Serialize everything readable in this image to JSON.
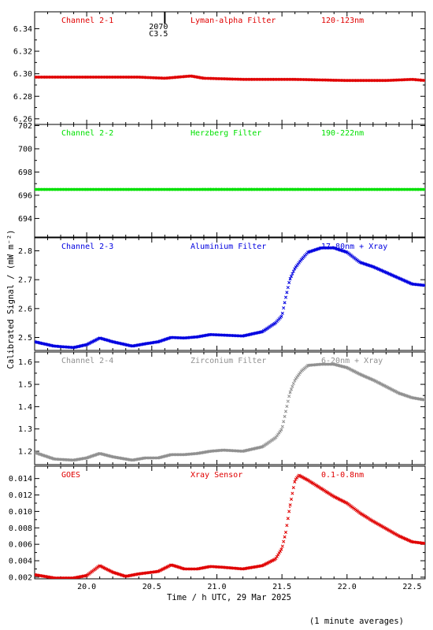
{
  "figure": {
    "xlabel": "Time / h UTC, 29 Mar 2025",
    "ylabel": "Calibrated Signal / (mW m⁻²)",
    "footer": "(1 minute averages)",
    "marker": {
      "label1": "2070",
      "label2": "C3.5",
      "x": 20.6
    }
  },
  "chart_data": [
    {
      "type": "scatter",
      "panel": 1,
      "channel": "Channel 2-1",
      "filter": "Lyman-alpha Filter",
      "band": "120-123nm",
      "color": "#e00000",
      "xlim": [
        19.6,
        22.6
      ],
      "ylim": [
        6.255,
        6.355
      ],
      "yticks": [
        6.26,
        6.28,
        6.3,
        6.32,
        6.34
      ],
      "ytick_labels": [
        "6.26",
        "6.28",
        "6.30",
        "6.32",
        "6.34"
      ],
      "x": [
        19.6,
        20.0,
        20.4,
        20.6,
        20.8,
        20.9,
        21.2,
        21.6,
        22.0,
        22.3,
        22.5,
        22.6
      ],
      "y": [
        6.297,
        6.297,
        6.297,
        6.296,
        6.298,
        6.296,
        6.295,
        6.295,
        6.294,
        6.294,
        6.295,
        6.294
      ]
    },
    {
      "type": "scatter",
      "panel": 2,
      "channel": "Channel 2-2",
      "filter": "Herzberg Filter",
      "band": "190-222nm",
      "color": "#00e000",
      "xlim": [
        19.6,
        22.6
      ],
      "ylim": [
        692.4,
        702.1
      ],
      "yticks": [
        694,
        696,
        698,
        700,
        702
      ],
      "ytick_labels": [
        "694",
        "696",
        "698",
        "700",
        "702"
      ],
      "x": [
        19.6,
        20.0,
        20.5,
        21.0,
        21.5,
        22.0,
        22.5,
        22.6
      ],
      "y": [
        696.5,
        696.5,
        696.5,
        696.5,
        696.5,
        696.5,
        696.5,
        696.5
      ]
    },
    {
      "type": "scatter",
      "panel": 3,
      "channel": "Channel 2-3",
      "filter": "Aluminium Filter",
      "band": "17-80nm + Xray",
      "color": "#0000e0",
      "xlim": [
        19.6,
        22.6
      ],
      "ylim": [
        2.455,
        2.845
      ],
      "yticks": [
        2.5,
        2.6,
        2.7,
        2.8
      ],
      "ytick_labels": [
        "2.5",
        "2.6",
        "2.7",
        "2.8"
      ],
      "x": [
        19.6,
        19.75,
        19.9,
        20.0,
        20.1,
        20.2,
        20.35,
        20.45,
        20.55,
        20.65,
        20.75,
        20.85,
        20.95,
        21.05,
        21.2,
        21.35,
        21.45,
        21.5,
        21.53,
        21.56,
        21.6,
        21.65,
        21.7,
        21.8,
        21.9,
        22.0,
        22.1,
        22.2,
        22.3,
        22.4,
        22.5,
        22.6
      ],
      "y": [
        2.485,
        2.47,
        2.465,
        2.475,
        2.498,
        2.485,
        2.47,
        2.478,
        2.485,
        2.5,
        2.498,
        2.502,
        2.51,
        2.508,
        2.505,
        2.52,
        2.55,
        2.575,
        2.64,
        2.7,
        2.74,
        2.77,
        2.795,
        2.81,
        2.81,
        2.795,
        2.76,
        2.745,
        2.725,
        2.705,
        2.685,
        2.68
      ]
    },
    {
      "type": "scatter",
      "panel": 4,
      "channel": "Channel 2-4",
      "filter": "Zirconium Filter",
      "band": "6-20nm + Xray",
      "color": "#909090",
      "xlim": [
        19.6,
        22.6
      ],
      "ylim": [
        1.14,
        1.645
      ],
      "yticks": [
        1.2,
        1.3,
        1.4,
        1.5,
        1.6
      ],
      "ytick_labels": [
        "1.2",
        "1.3",
        "1.4",
        "1.5",
        "1.6"
      ],
      "x": [
        19.6,
        19.75,
        19.9,
        20.0,
        20.1,
        20.2,
        20.35,
        20.45,
        20.55,
        20.65,
        20.75,
        20.85,
        20.95,
        21.05,
        21.2,
        21.35,
        21.45,
        21.5,
        21.53,
        21.56,
        21.6,
        21.65,
        21.7,
        21.8,
        21.9,
        22.0,
        22.1,
        22.2,
        22.3,
        22.4,
        22.5,
        22.6
      ],
      "y": [
        1.195,
        1.165,
        1.16,
        1.17,
        1.19,
        1.175,
        1.16,
        1.17,
        1.17,
        1.185,
        1.185,
        1.19,
        1.2,
        1.205,
        1.2,
        1.22,
        1.26,
        1.3,
        1.38,
        1.46,
        1.52,
        1.56,
        1.585,
        1.59,
        1.59,
        1.575,
        1.545,
        1.52,
        1.49,
        1.46,
        1.44,
        1.43
      ]
    },
    {
      "type": "scatter",
      "panel": 5,
      "channel": "GOES",
      "filter": "Xray Sensor",
      "band": "0.1-0.8nm",
      "color": "#e00000",
      "xlim": [
        19.6,
        22.6
      ],
      "ylim": [
        0.0018,
        0.0155
      ],
      "yticks": [
        0.002,
        0.004,
        0.006,
        0.008,
        0.01,
        0.012,
        0.014
      ],
      "ytick_labels": [
        "0.002",
        "0.004",
        "0.006",
        "0.008",
        "0.010",
        "0.012",
        "0.014"
      ],
      "x": [
        19.6,
        19.75,
        19.9,
        20.0,
        20.1,
        20.2,
        20.3,
        20.4,
        20.5,
        20.55,
        20.65,
        20.75,
        20.85,
        20.95,
        21.05,
        21.2,
        21.35,
        21.45,
        21.5,
        21.53,
        21.56,
        21.6,
        21.63,
        21.7,
        21.8,
        21.9,
        22.0,
        22.1,
        22.2,
        22.3,
        22.4,
        22.5,
        22.6
      ],
      "y": [
        0.0023,
        0.0019,
        0.0019,
        0.0022,
        0.0034,
        0.0026,
        0.0021,
        0.0024,
        0.0026,
        0.0027,
        0.0035,
        0.003,
        0.003,
        0.0033,
        0.0032,
        0.003,
        0.0034,
        0.0042,
        0.0055,
        0.0075,
        0.0105,
        0.0138,
        0.0144,
        0.0138,
        0.0128,
        0.0118,
        0.011,
        0.0098,
        0.0088,
        0.0079,
        0.007,
        0.0063,
        0.0061
      ]
    }
  ],
  "xaxis": {
    "xlim": [
      19.6,
      22.6
    ],
    "ticks": [
      20.0,
      20.5,
      21.0,
      21.5,
      22.0,
      22.5
    ],
    "tick_labels": [
      "20.0",
      "20.5",
      "21.0",
      "21.5",
      "22.0",
      "22.5"
    ]
  }
}
